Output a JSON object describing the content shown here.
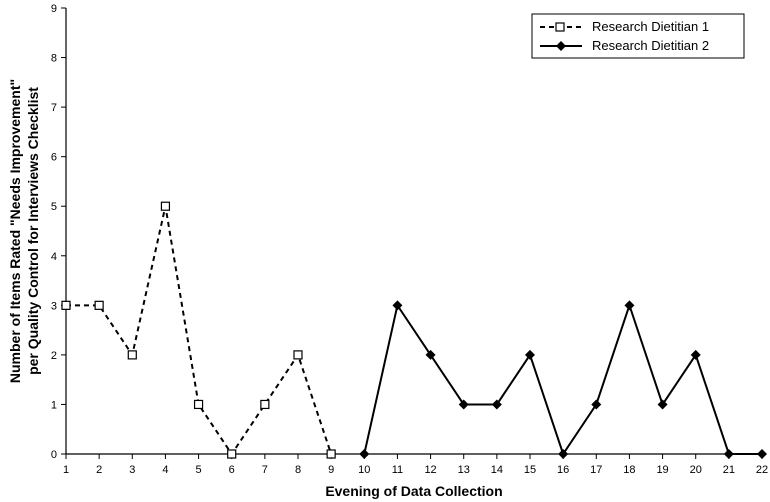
{
  "chart_data": {
    "type": "line",
    "xlabel": "Evening of Data Collection",
    "ylabel_line1": "Number of Items Rated \"Needs Improvement\"",
    "ylabel_line2": "per Quality Control for Interviews Checklist",
    "xlim": [
      1,
      22
    ],
    "ylim": [
      0,
      9
    ],
    "x_ticks": [
      1,
      2,
      3,
      4,
      5,
      6,
      7,
      8,
      9,
      10,
      11,
      12,
      13,
      14,
      15,
      16,
      17,
      18,
      19,
      20,
      21,
      22
    ],
    "y_ticks": [
      0,
      1,
      2,
      3,
      4,
      5,
      6,
      7,
      8,
      9
    ],
    "grid": false,
    "legend_position": "top-right",
    "series": [
      {
        "name": "Research Dietitian 1",
        "line_style": "dashed",
        "marker": "open-square",
        "color": "#000000",
        "x": [
          1,
          2,
          3,
          4,
          5,
          6,
          7,
          8,
          9
        ],
        "y": [
          3,
          3,
          2,
          5,
          1,
          0,
          1,
          2,
          0
        ]
      },
      {
        "name": "Research Dietitian 2",
        "line_style": "solid",
        "marker": "filled-diamond",
        "color": "#000000",
        "x": [
          10,
          11,
          12,
          13,
          14,
          15,
          16,
          17,
          18,
          19,
          20,
          21,
          22
        ],
        "y": [
          0,
          3,
          2,
          1,
          1,
          2,
          0,
          1,
          3,
          1,
          2,
          0,
          0
        ]
      }
    ]
  }
}
